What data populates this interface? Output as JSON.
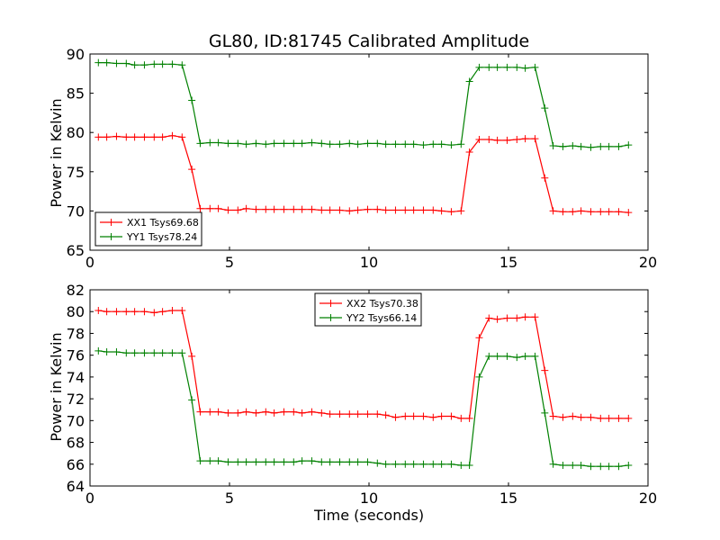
{
  "colors": {
    "xx": "#ff0000",
    "yy": "#008000"
  },
  "chart_data": [
    {
      "type": "line",
      "title": "GL80, ID:81745 Calibrated Amplitude",
      "xlabel": "",
      "ylabel": "Power in Kelvin",
      "xlim": [
        0,
        20
      ],
      "ylim": [
        65,
        90
      ],
      "xticks": [
        "0",
        "5",
        "10",
        "15",
        "20"
      ],
      "yticks": [
        "65",
        "70",
        "75",
        "80",
        "85",
        "90"
      ],
      "legend_position": "lower-left",
      "x": [
        0.3,
        0.6,
        0.95,
        1.3,
        1.6,
        1.95,
        2.3,
        2.6,
        2.95,
        3.3,
        3.65,
        3.95,
        4.3,
        4.6,
        4.95,
        5.3,
        5.6,
        5.95,
        6.3,
        6.6,
        6.95,
        7.3,
        7.6,
        7.95,
        8.3,
        8.6,
        8.95,
        9.3,
        9.6,
        9.95,
        10.3,
        10.6,
        10.95,
        11.3,
        11.6,
        11.95,
        12.3,
        12.6,
        12.95,
        13.3,
        13.6,
        13.95,
        14.3,
        14.6,
        14.95,
        15.3,
        15.6,
        15.95,
        16.3,
        16.6,
        16.95,
        17.3,
        17.6,
        17.95,
        18.3,
        18.6,
        18.95,
        19.3
      ],
      "series": [
        {
          "name": "XX1 Tsys69.68",
          "color_key": "xx",
          "values": [
            79.4,
            79.4,
            79.5,
            79.4,
            79.4,
            79.4,
            79.4,
            79.4,
            79.6,
            79.4,
            75.3,
            70.3,
            70.3,
            70.3,
            70.1,
            70.1,
            70.3,
            70.2,
            70.2,
            70.2,
            70.2,
            70.2,
            70.2,
            70.2,
            70.1,
            70.1,
            70.1,
            70.0,
            70.1,
            70.2,
            70.2,
            70.1,
            70.1,
            70.1,
            70.1,
            70.1,
            70.1,
            70.0,
            69.9,
            70.0,
            77.5,
            79.1,
            79.1,
            79.0,
            79.0,
            79.1,
            79.2,
            79.2,
            74.2,
            70.0,
            69.9,
            69.9,
            70.0,
            69.9,
            69.9,
            69.9,
            69.9,
            69.8
          ]
        },
        {
          "name": "YY1 Tsys78.24",
          "color_key": "yy",
          "values": [
            88.9,
            88.9,
            88.8,
            88.8,
            88.6,
            88.6,
            88.7,
            88.7,
            88.7,
            88.6,
            84.1,
            78.6,
            78.7,
            78.7,
            78.6,
            78.6,
            78.5,
            78.6,
            78.5,
            78.6,
            78.6,
            78.6,
            78.6,
            78.7,
            78.6,
            78.5,
            78.5,
            78.6,
            78.5,
            78.6,
            78.6,
            78.5,
            78.5,
            78.5,
            78.5,
            78.4,
            78.5,
            78.5,
            78.4,
            78.5,
            86.5,
            88.3,
            88.3,
            88.3,
            88.3,
            88.3,
            88.2,
            88.3,
            83.1,
            78.3,
            78.2,
            78.3,
            78.2,
            78.1,
            78.2,
            78.2,
            78.2,
            78.4
          ]
        }
      ]
    },
    {
      "type": "line",
      "title": "",
      "xlabel": "Time (seconds)",
      "ylabel": "Power in Kelvin",
      "xlim": [
        0,
        20
      ],
      "ylim": [
        64,
        82
      ],
      "xticks": [
        "0",
        "5",
        "10",
        "15",
        "20"
      ],
      "yticks": [
        "64",
        "66",
        "68",
        "70",
        "72",
        "74",
        "76",
        "78",
        "80",
        "82"
      ],
      "legend_position": "upper-center",
      "x": [
        0.3,
        0.6,
        0.95,
        1.3,
        1.6,
        1.95,
        2.3,
        2.6,
        2.95,
        3.3,
        3.65,
        3.95,
        4.3,
        4.6,
        4.95,
        5.3,
        5.6,
        5.95,
        6.3,
        6.6,
        6.95,
        7.3,
        7.6,
        7.95,
        8.3,
        8.6,
        8.95,
        9.3,
        9.6,
        9.95,
        10.3,
        10.6,
        10.95,
        11.3,
        11.6,
        11.95,
        12.3,
        12.6,
        12.95,
        13.3,
        13.6,
        13.95,
        14.3,
        14.6,
        14.95,
        15.3,
        15.6,
        15.95,
        16.3,
        16.6,
        16.95,
        17.3,
        17.6,
        17.95,
        18.3,
        18.6,
        18.95,
        19.3
      ],
      "series": [
        {
          "name": "XX2 Tsys70.38",
          "color_key": "xx",
          "values": [
            80.1,
            80.0,
            80.0,
            80.0,
            80.0,
            80.0,
            79.9,
            80.0,
            80.1,
            80.1,
            75.9,
            70.8,
            70.8,
            70.8,
            70.7,
            70.7,
            70.8,
            70.7,
            70.8,
            70.7,
            70.8,
            70.8,
            70.7,
            70.8,
            70.7,
            70.6,
            70.6,
            70.6,
            70.6,
            70.6,
            70.6,
            70.5,
            70.3,
            70.4,
            70.4,
            70.4,
            70.3,
            70.4,
            70.4,
            70.2,
            70.2,
            77.6,
            79.4,
            79.3,
            79.4,
            79.4,
            79.5,
            79.5,
            74.6,
            70.4,
            70.3,
            70.4,
            70.3,
            70.3,
            70.2,
            70.2,
            70.2,
            70.2
          ]
        },
        {
          "name": "YY2 Tsys66.14",
          "color_key": "yy",
          "values": [
            76.4,
            76.3,
            76.3,
            76.2,
            76.2,
            76.2,
            76.2,
            76.2,
            76.2,
            76.2,
            71.9,
            66.3,
            66.3,
            66.3,
            66.2,
            66.2,
            66.2,
            66.2,
            66.2,
            66.2,
            66.2,
            66.2,
            66.3,
            66.3,
            66.2,
            66.2,
            66.2,
            66.2,
            66.2,
            66.2,
            66.1,
            66.0,
            66.0,
            66.0,
            66.0,
            66.0,
            66.0,
            66.0,
            66.0,
            65.9,
            65.9,
            74.0,
            75.9,
            75.9,
            75.9,
            75.8,
            75.9,
            75.9,
            70.7,
            66.0,
            65.9,
            65.9,
            65.9,
            65.8,
            65.8,
            65.8,
            65.8,
            65.9
          ]
        }
      ]
    }
  ]
}
